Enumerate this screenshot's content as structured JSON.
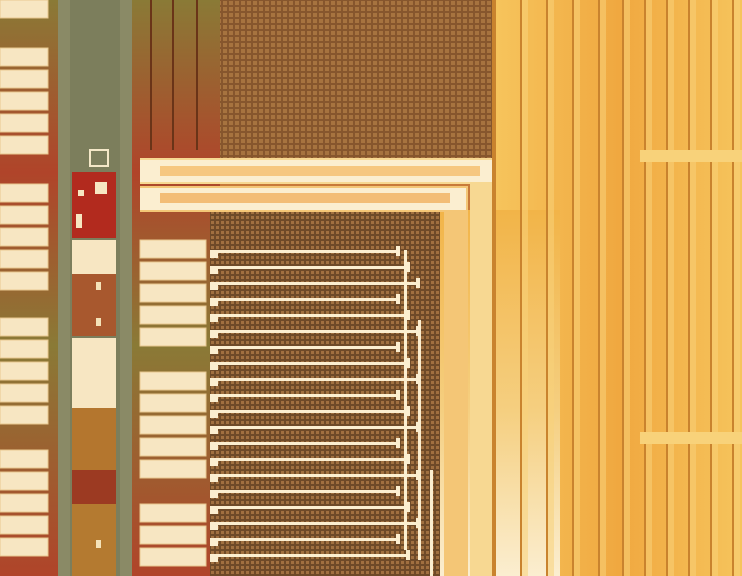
{
  "image": {
    "subject": "die-micrograph",
    "colors": {
      "pad": "#f7e6c2",
      "pad_edge": "#e8c890",
      "rail": "#8a8a66",
      "substrate_red": "#b0442a",
      "substrate_olive": "#8a7a36",
      "mesh": "#9a6a38",
      "gold": "#f2b448",
      "gold_light": "#f8d27a",
      "gold_dark": "#c9832e",
      "bright_metal": "#fbeed0",
      "background": "#c87a3a"
    }
  }
}
